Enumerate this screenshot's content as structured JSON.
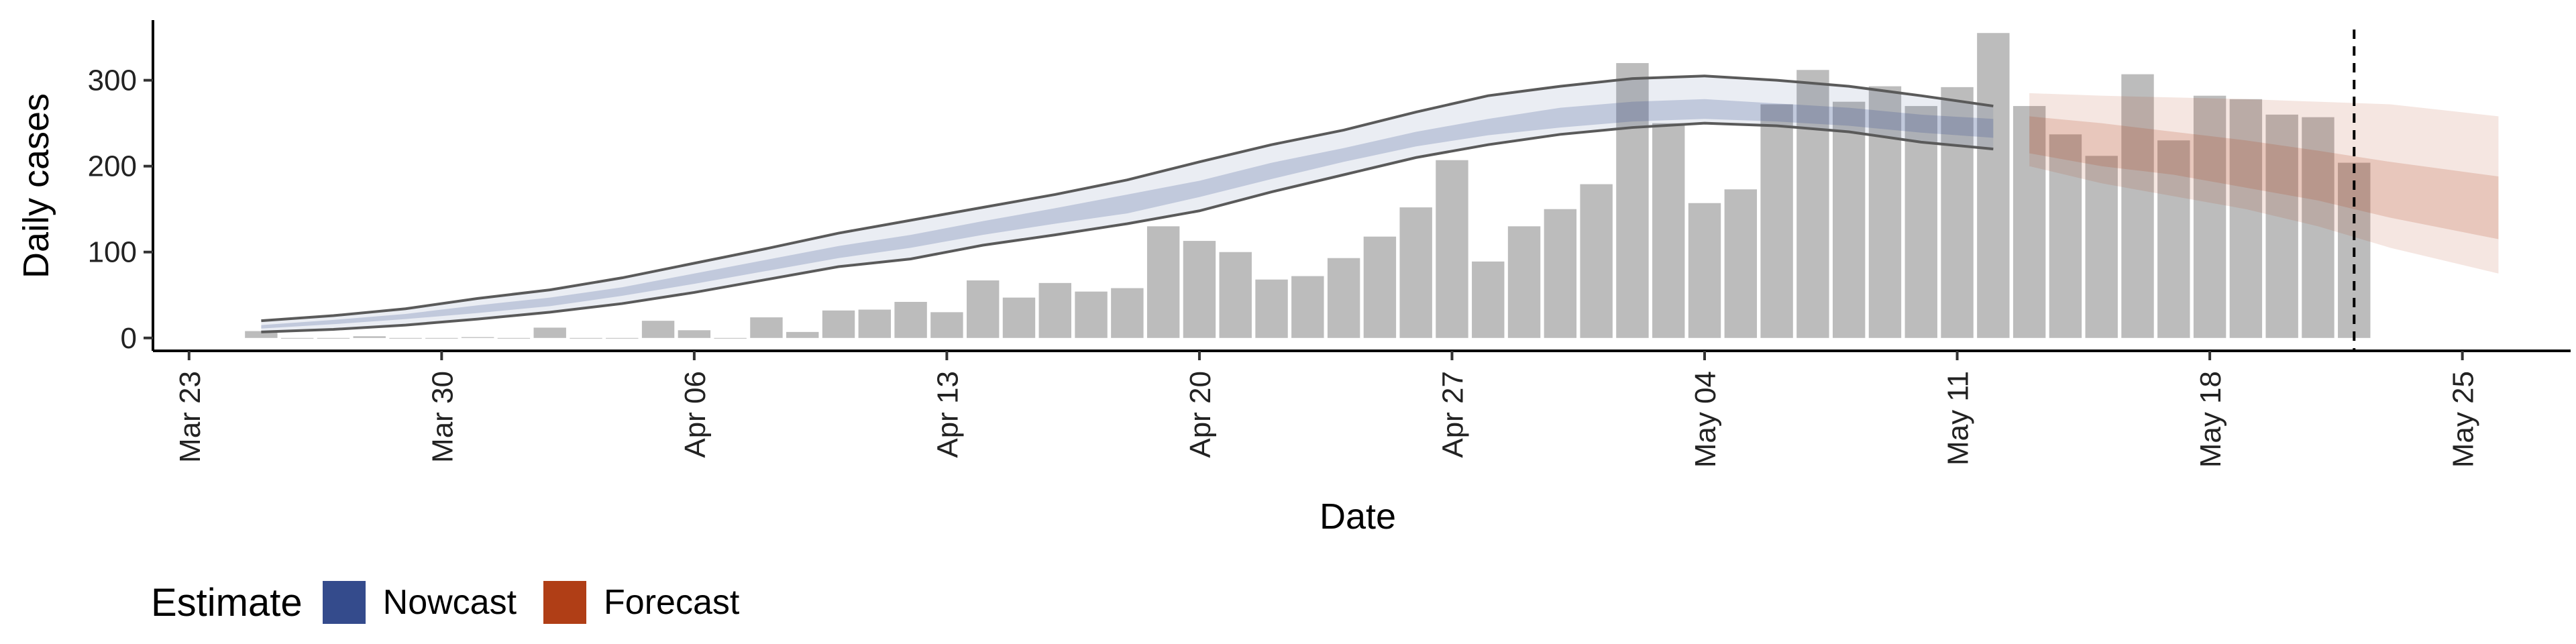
{
  "chart_data": {
    "type": "bar",
    "xlabel": "Date",
    "ylabel": "Daily cases",
    "ylim": [
      -15,
      370
    ],
    "yticks": [
      0,
      100,
      200,
      300
    ],
    "xlim": [
      "2020-03-22",
      "2020-05-28"
    ],
    "xticks": [
      {
        "date": "2020-03-23",
        "label": "Mar 23"
      },
      {
        "date": "2020-03-30",
        "label": "Mar 30"
      },
      {
        "date": "2020-04-06",
        "label": "Apr 06"
      },
      {
        "date": "2020-04-13",
        "label": "Apr 13"
      },
      {
        "date": "2020-04-20",
        "label": "Apr 20"
      },
      {
        "date": "2020-04-27",
        "label": "Apr 27"
      },
      {
        "date": "2020-05-04",
        "label": "May 04"
      },
      {
        "date": "2020-05-11",
        "label": "May 11"
      },
      {
        "date": "2020-05-18",
        "label": "May 18"
      },
      {
        "date": "2020-05-25",
        "label": "May 25"
      }
    ],
    "grid": false,
    "vline_date": "2020-05-22",
    "bars": {
      "color": "#a6a6a6",
      "dates": [
        "2020-03-25",
        "2020-03-26",
        "2020-03-27",
        "2020-03-28",
        "2020-03-29",
        "2020-03-30",
        "2020-03-31",
        "2020-04-01",
        "2020-04-02",
        "2020-04-03",
        "2020-04-04",
        "2020-04-05",
        "2020-04-06",
        "2020-04-07",
        "2020-04-08",
        "2020-04-09",
        "2020-04-10",
        "2020-04-11",
        "2020-04-12",
        "2020-04-13",
        "2020-04-14",
        "2020-04-15",
        "2020-04-16",
        "2020-04-17",
        "2020-04-18",
        "2020-04-19",
        "2020-04-20",
        "2020-04-21",
        "2020-04-22",
        "2020-04-23",
        "2020-04-24",
        "2020-04-25",
        "2020-04-26",
        "2020-04-27",
        "2020-04-28",
        "2020-04-29",
        "2020-04-30",
        "2020-05-01",
        "2020-05-02",
        "2020-05-03",
        "2020-05-04",
        "2020-05-05",
        "2020-05-06",
        "2020-05-07",
        "2020-05-08",
        "2020-05-09",
        "2020-05-10",
        "2020-05-11",
        "2020-05-12",
        "2020-05-13",
        "2020-05-14",
        "2020-05-15",
        "2020-05-16",
        "2020-05-17",
        "2020-05-18",
        "2020-05-19",
        "2020-05-20",
        "2020-05-21",
        "2020-05-22"
      ],
      "values": [
        8,
        0,
        0,
        2,
        0,
        0,
        1,
        0,
        12,
        0,
        0,
        20,
        9,
        0,
        24,
        7,
        32,
        33,
        42,
        30,
        67,
        47,
        64,
        54,
        58,
        130,
        113,
        100,
        68,
        72,
        93,
        118,
        152,
        207,
        89,
        130,
        150,
        179,
        320,
        250,
        157,
        173,
        272,
        312,
        275,
        293,
        270,
        292,
        355,
        270,
        237,
        212,
        307,
        230,
        282,
        278,
        260,
        257,
        204
      ]
    },
    "nowcast": {
      "name": "Nowcast",
      "color": "#344b8c",
      "dates": [
        "2020-03-25",
        "2020-03-27",
        "2020-03-29",
        "2020-03-31",
        "2020-04-02",
        "2020-04-04",
        "2020-04-06",
        "2020-04-08",
        "2020-04-10",
        "2020-04-12",
        "2020-04-14",
        "2020-04-16",
        "2020-04-18",
        "2020-04-20",
        "2020-04-22",
        "2020-04-24",
        "2020-04-26",
        "2020-04-28",
        "2020-04-30",
        "2020-05-02",
        "2020-05-04",
        "2020-05-06",
        "2020-05-08",
        "2020-05-10",
        "2020-05-12"
      ],
      "lower90": [
        7,
        10,
        15,
        22,
        30,
        40,
        53,
        68,
        83,
        92,
        108,
        120,
        133,
        148,
        170,
        190,
        210,
        225,
        237,
        245,
        250,
        247,
        240,
        228,
        220
      ],
      "upper90": [
        20,
        26,
        34,
        46,
        56,
        70,
        87,
        104,
        122,
        137,
        152,
        167,
        184,
        205,
        225,
        242,
        263,
        282,
        293,
        302,
        305,
        300,
        293,
        282,
        270
      ],
      "lower50": [
        11,
        16,
        22,
        29,
        37,
        49,
        63,
        78,
        93,
        105,
        120,
        133,
        145,
        164,
        185,
        205,
        223,
        236,
        245,
        252,
        255,
        252,
        247,
        239,
        233
      ],
      "upper50": [
        15,
        21,
        28,
        38,
        47,
        59,
        75,
        91,
        107,
        120,
        136,
        151,
        167,
        183,
        204,
        221,
        240,
        255,
        268,
        275,
        278,
        273,
        268,
        260,
        255
      ]
    },
    "forecast": {
      "name": "Forecast",
      "color": "#b03e16",
      "dates": [
        "2020-05-13",
        "2020-05-15",
        "2020-05-17",
        "2020-05-19",
        "2020-05-21",
        "2020-05-23",
        "2020-05-26"
      ],
      "lower90": [
        200,
        180,
        165,
        150,
        130,
        105,
        75
      ],
      "upper90": [
        285,
        282,
        280,
        278,
        275,
        272,
        258
      ],
      "lower50": [
        215,
        200,
        190,
        175,
        160,
        140,
        115
      ],
      "upper50": [
        258,
        250,
        240,
        230,
        218,
        205,
        188
      ]
    }
  },
  "legend": {
    "title": "Estimate",
    "items": [
      {
        "label": "Nowcast",
        "color": "#344b8c"
      },
      {
        "label": "Forecast",
        "color": "#b03e16"
      }
    ]
  }
}
